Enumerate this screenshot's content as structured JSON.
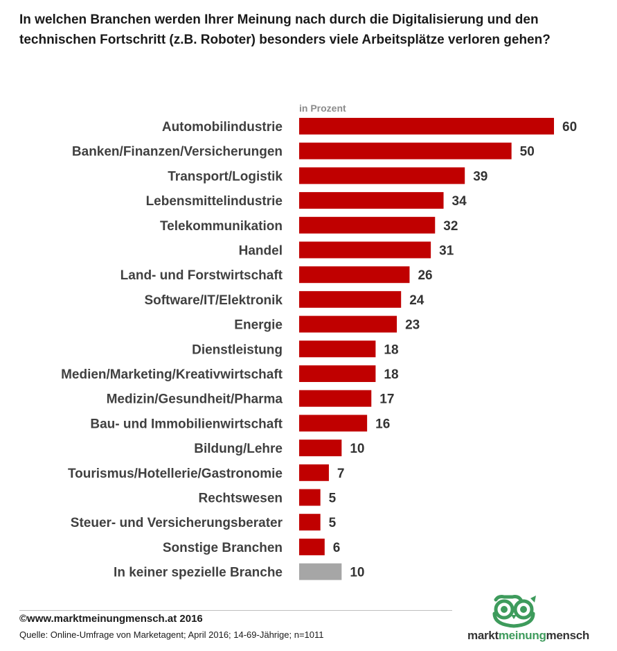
{
  "title": "In welchen Branchen werden Ihrer Meinung nach durch die Digitalisierung und den technischen Fortschritt (z.B. Roboter) besonders viele Arbeitsplätze verloren gehen?",
  "chart_data": {
    "type": "bar",
    "orientation": "horizontal",
    "unit_label": "in Prozent",
    "categories": [
      "Automobilindustrie",
      "Banken/Finanzen/Versicherungen",
      "Transport/Logistik",
      "Lebensmittelindustrie",
      "Telekommunikation",
      "Handel",
      "Land- und Forstwirtschaft",
      "Software/IT/Elektronik",
      "Energie",
      "Dienstleistung",
      "Medien/Marketing/Kreativwirtschaft",
      "Medizin/Gesundheit/Pharma",
      "Bau- und Immobilienwirtschaft",
      "Bildung/Lehre",
      "Tourismus/Hotellerie/Gastronomie",
      "Rechtswesen",
      "Steuer- und Versicherungsberater",
      "Sonstige Branchen",
      "In keiner spezielle Branche"
    ],
    "values": [
      60,
      50,
      39,
      34,
      32,
      31,
      26,
      24,
      23,
      18,
      18,
      17,
      16,
      10,
      7,
      5,
      5,
      6,
      10
    ],
    "colors": [
      "#c00000",
      "#c00000",
      "#c00000",
      "#c00000",
      "#c00000",
      "#c00000",
      "#c00000",
      "#c00000",
      "#c00000",
      "#c00000",
      "#c00000",
      "#c00000",
      "#c00000",
      "#c00000",
      "#c00000",
      "#c00000",
      "#c00000",
      "#c00000",
      "#a6a6a6"
    ],
    "xlim": [
      0,
      60
    ],
    "grid": false,
    "legend": "none"
  },
  "footer": {
    "copyright": "©www.marktmeinungmensch.at 2016",
    "source": "Quelle: Online-Umfrage von Marketagent; April 2016; 14-69-Jährige; n=1011"
  },
  "logo": {
    "part1": "markt",
    "part2": "meinung",
    "part3": "mensch",
    "icon": "owl-icon",
    "color": "#3e9b5c"
  }
}
